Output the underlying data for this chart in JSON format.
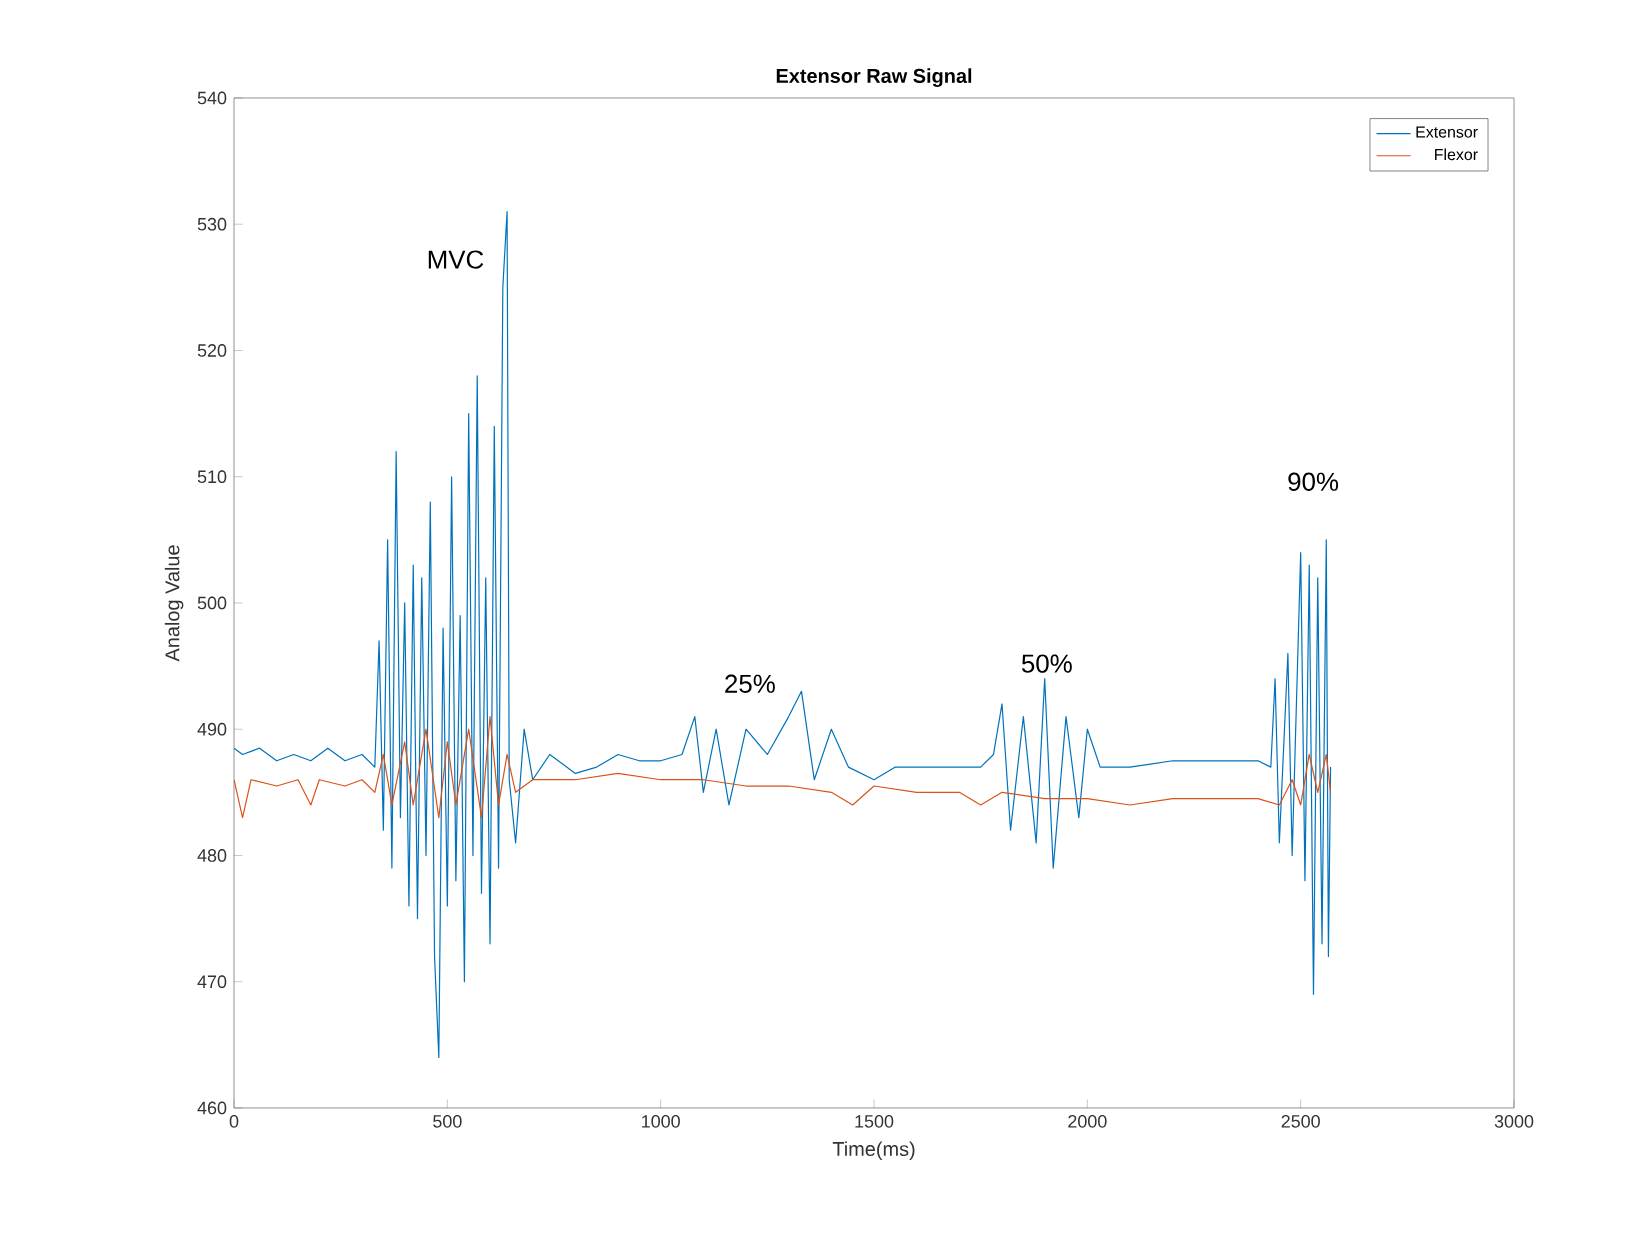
{
  "chart_data": {
    "type": "line",
    "title": "Extensor Raw Signal",
    "xlabel": "Time(ms)",
    "ylabel": "Analog Value",
    "xlim": [
      0,
      3000
    ],
    "ylim": [
      460,
      540
    ],
    "xticks": [
      0,
      500,
      1000,
      1500,
      2000,
      2500,
      3000
    ],
    "yticks": [
      460,
      470,
      480,
      490,
      500,
      510,
      520,
      530,
      540
    ],
    "grid": false,
    "legend": "top right",
    "annotations": [
      "MVC",
      "25%",
      "50%",
      "90%"
    ],
    "series": [
      {
        "name": "Extensor",
        "color": "#0072bd",
        "x": [
          0,
          20,
          60,
          100,
          140,
          180,
          220,
          260,
          300,
          330,
          340,
          350,
          360,
          370,
          380,
          390,
          400,
          410,
          420,
          430,
          440,
          450,
          460,
          470,
          480,
          490,
          500,
          510,
          520,
          530,
          540,
          550,
          560,
          570,
          580,
          590,
          600,
          610,
          620,
          630,
          640,
          645,
          660,
          680,
          700,
          740,
          800,
          850,
          900,
          950,
          1000,
          1050,
          1080,
          1100,
          1130,
          1160,
          1200,
          1250,
          1300,
          1330,
          1360,
          1400,
          1440,
          1500,
          1550,
          1600,
          1650,
          1700,
          1750,
          1780,
          1800,
          1820,
          1850,
          1880,
          1900,
          1920,
          1950,
          1980,
          2000,
          2030,
          2100,
          2200,
          2300,
          2400,
          2430,
          2440,
          2450,
          2470,
          2480,
          2500,
          2510,
          2520,
          2530,
          2540,
          2550,
          2560,
          2565,
          2570
        ],
        "values": [
          488.5,
          488,
          488.5,
          487.5,
          488,
          487.5,
          488.5,
          487.5,
          488,
          487,
          497,
          482,
          505,
          479,
          512,
          483,
          500,
          476,
          503,
          475,
          502,
          480,
          508,
          472,
          464,
          498,
          476,
          510,
          478,
          499,
          470,
          515,
          480,
          518,
          477,
          502,
          473,
          514,
          479,
          525,
          531,
          486,
          481,
          490,
          486,
          488,
          486.5,
          487,
          488,
          487.5,
          487.5,
          488,
          491,
          485,
          490,
          484,
          490,
          488,
          491,
          493,
          486,
          490,
          487,
          486,
          487,
          487,
          487,
          487,
          487,
          488,
          492,
          482,
          491,
          481,
          494,
          479,
          491,
          483,
          490,
          487,
          487,
          487.5,
          487.5,
          487.5,
          487,
          494,
          481,
          496,
          480,
          504,
          478,
          503,
          469,
          502,
          473,
          505,
          472,
          487
        ]
      },
      {
        "name": "Flexor",
        "color": "#d95319",
        "x": [
          0,
          20,
          40,
          100,
          150,
          180,
          200,
          260,
          300,
          330,
          350,
          370,
          400,
          420,
          450,
          480,
          500,
          520,
          550,
          580,
          600,
          620,
          640,
          660,
          700,
          800,
          900,
          1000,
          1100,
          1200,
          1300,
          1400,
          1450,
          1500,
          1600,
          1700,
          1750,
          1800,
          1900,
          2000,
          2100,
          2200,
          2300,
          2400,
          2450,
          2480,
          2500,
          2520,
          2540,
          2560,
          2570
        ],
        "values": [
          486,
          483,
          486,
          485.5,
          486,
          484,
          486,
          485.5,
          486,
          485,
          488,
          484,
          489,
          484,
          490,
          483,
          489,
          484,
          490,
          483,
          491,
          484,
          488,
          485,
          486,
          486,
          486.5,
          486,
          486,
          485.5,
          485.5,
          485,
          484,
          485.5,
          485,
          485,
          484,
          485,
          484.5,
          484.5,
          484,
          484.5,
          484.5,
          484.5,
          484,
          486,
          484,
          488,
          485,
          488,
          485
        ]
      }
    ]
  }
}
